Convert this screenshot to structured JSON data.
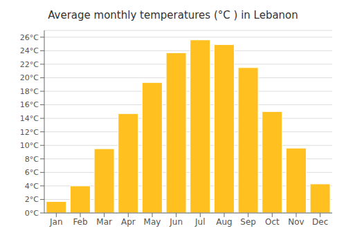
{
  "chart_data": {
    "type": "bar",
    "title": "Average monthly temperatures (°C ) in Lebanon",
    "categories": [
      "Jan",
      "Feb",
      "Mar",
      "Apr",
      "May",
      "Jun",
      "Jul",
      "Aug",
      "Sep",
      "Oct",
      "Nov",
      "Dec"
    ],
    "values": [
      1.7,
      4.0,
      9.5,
      14.7,
      19.3,
      23.7,
      25.6,
      24.9,
      21.5,
      15.0,
      9.6,
      4.3
    ],
    "color": "#FFC020",
    "ylim": [
      0,
      27
    ],
    "yticks": [
      {
        "value": 0,
        "label": "0°C"
      },
      {
        "value": 2,
        "label": "2°C"
      },
      {
        "value": 4,
        "label": "4°C"
      },
      {
        "value": 6,
        "label": "6°C"
      },
      {
        "value": 8,
        "label": "8°C"
      },
      {
        "value": 10,
        "label": "10°C"
      },
      {
        "value": 12,
        "label": "12°C"
      },
      {
        "value": 14,
        "label": "14°C"
      },
      {
        "value": 16,
        "label": "16°C"
      },
      {
        "value": 18,
        "label": "18°C"
      },
      {
        "value": 20,
        "label": "20°C"
      },
      {
        "value": 22,
        "label": "22°C"
      },
      {
        "value": 24,
        "label": "24°C"
      },
      {
        "value": 26,
        "label": "26°C"
      }
    ],
    "grid": true
  }
}
